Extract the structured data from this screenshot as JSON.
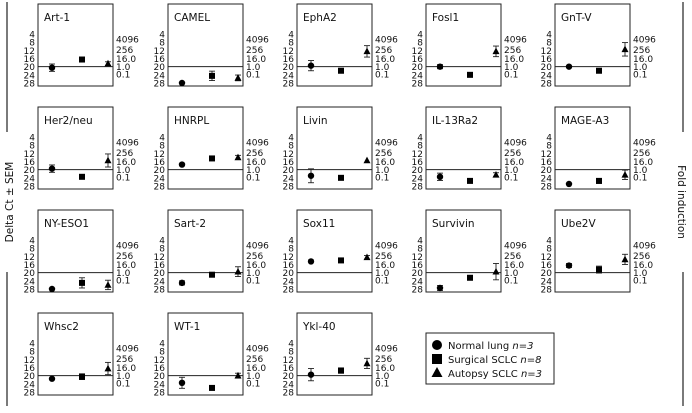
{
  "figure": {
    "y_axis_label": "Delta Ct ± SEM",
    "right_axis_label": "Fold induction"
  },
  "legend": {
    "items": [
      {
        "marker": "circle",
        "label": "Normal lung",
        "n": "n=3"
      },
      {
        "marker": "square",
        "label": "Surgical SCLC",
        "n": "n=8"
      },
      {
        "marker": "triangle",
        "label": "Autopsy SCLC",
        "n": "n=3"
      }
    ]
  },
  "chart_data": {
    "type": "scatter",
    "groups": [
      "Normal lung",
      "Surgical SCLC",
      "Autopsy SCLC"
    ],
    "markers": [
      "circle",
      "square",
      "triangle"
    ],
    "left_axis": {
      "label": "Delta Ct ± SEM",
      "ticks": [
        4,
        8,
        12,
        16,
        20,
        24,
        28
      ],
      "ylim": [
        4,
        28
      ],
      "inverted": true
    },
    "right_axis": {
      "label": "Fold induction",
      "ticks": [
        "4096",
        "256",
        "16.0",
        "1.0",
        "0.1"
      ],
      "reference_line_at": 20
    },
    "panels": [
      {
        "title": "Art-1",
        "values": [
          20.5,
          16.5,
          18.5
        ],
        "errors": [
          1.8,
          0,
          0.9
        ]
      },
      {
        "title": "CAMEL",
        "values": [
          28.0,
          24.5,
          25.5
        ],
        "errors": [
          0,
          2.3,
          1.4
        ]
      },
      {
        "title": "EphA2",
        "values": [
          19.5,
          22.0,
          12.5
        ],
        "errors": [
          2.5,
          0,
          2.8
        ]
      },
      {
        "title": "Fosl1",
        "values": [
          20.0,
          24.0,
          12.5
        ],
        "errors": [
          1.0,
          0,
          2.6
        ]
      },
      {
        "title": "GnT-V",
        "values": [
          20.0,
          22.0,
          11.5
        ],
        "errors": [
          0,
          0,
          3.3
        ]
      },
      {
        "title": "Her2/neu",
        "values": [
          19.5,
          23.5,
          15.5
        ],
        "errors": [
          1.8,
          0,
          3.2
        ]
      },
      {
        "title": "HNRPL",
        "values": [
          17.5,
          14.5,
          14.0
        ],
        "errors": [
          0,
          0,
          1.0
        ]
      },
      {
        "title": "Livin",
        "values": [
          23.0,
          24.0,
          15.5
        ],
        "errors": [
          3.4,
          0,
          0
        ]
      },
      {
        "title": "IL-13Ra2",
        "values": [
          23.5,
          25.5,
          22.5
        ],
        "errors": [
          1.8,
          0,
          1.0
        ]
      },
      {
        "title": "MAGE-A3",
        "values": [
          27.0,
          25.5,
          22.5
        ],
        "errors": [
          0,
          1.2,
          2.3
        ]
      },
      {
        "title": "NY-ESO1",
        "values": [
          28.0,
          25.0,
          26.0
        ],
        "errors": [
          0,
          2.5,
          2.3
        ]
      },
      {
        "title": "Sart-2",
        "values": [
          25.0,
          21.0,
          19.5
        ],
        "errors": [
          1.0,
          0.8,
          2.4
        ]
      },
      {
        "title": "Sox11",
        "values": [
          14.5,
          14.0,
          12.5
        ],
        "errors": [
          0,
          0,
          0.9
        ]
      },
      {
        "title": "Survivin",
        "values": [
          27.5,
          22.5,
          19.5
        ],
        "errors": [
          1.2,
          1.0,
          4.0
        ]
      },
      {
        "title": "Ube2V",
        "values": [
          16.5,
          18.5,
          13.5
        ],
        "errors": [
          1.0,
          1.7,
          2.5
        ]
      },
      {
        "title": "Whsc2",
        "values": [
          21.5,
          20.5,
          16.5
        ],
        "errors": [
          0,
          1.4,
          3.0
        ]
      },
      {
        "title": "WT-1",
        "values": [
          23.5,
          26.0,
          20.0
        ],
        "errors": [
          2.7,
          0,
          1.2
        ]
      },
      {
        "title": "Ykl-40",
        "values": [
          19.5,
          17.5,
          14.0
        ],
        "errors": [
          3.0,
          1.3,
          2.5
        ]
      }
    ]
  }
}
